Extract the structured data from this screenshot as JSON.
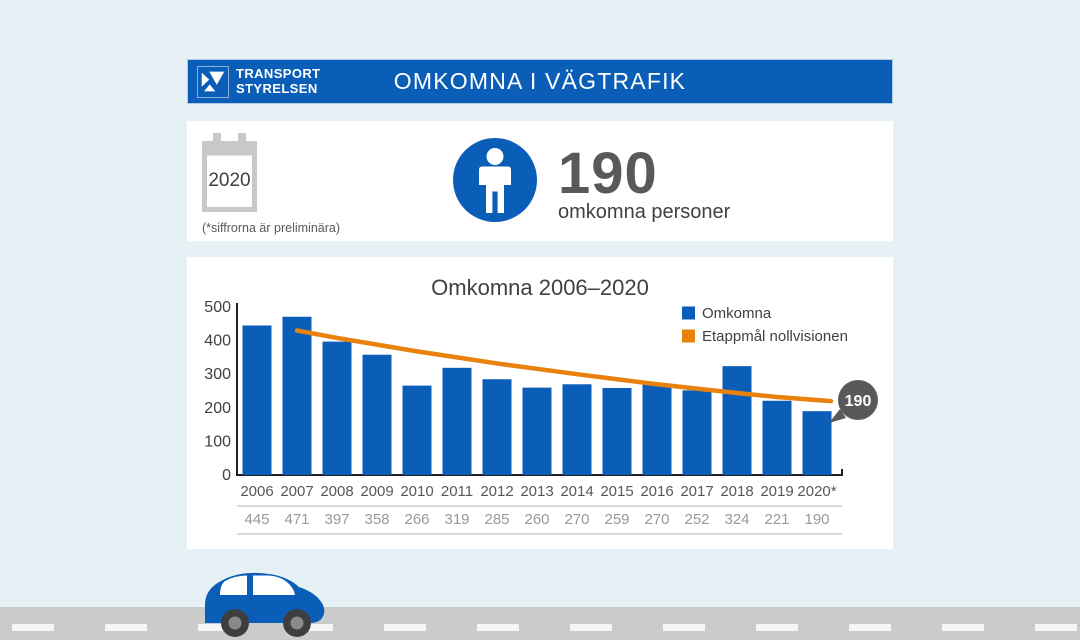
{
  "colors": {
    "brand_blue": "#0A5EB8",
    "orange": "#E8820D",
    "dark_gray": "#58595B",
    "mid_gray": "#97999B",
    "light_gray": "#C9CBCD",
    "text": "#414042",
    "background": "#E6F1F6",
    "road": "#C9CCCB",
    "card": "#FFFFFF"
  },
  "header": {
    "logo_line1": "TRANSPORT",
    "logo_line2": "STYRELSEN",
    "title": "OMKOMNA I VÄGTRAFIK"
  },
  "summary": {
    "year": "2020",
    "note": "(*siffrorna är preliminära)",
    "count": "190",
    "count_label": "omkomna personer"
  },
  "chart_data": {
    "type": "bar",
    "title": "Omkomna 2006–2020",
    "categories": [
      "2006",
      "2007",
      "2008",
      "2009",
      "2010",
      "2011",
      "2012",
      "2013",
      "2014",
      "2015",
      "2016",
      "2017",
      "2018",
      "2019",
      "2020*"
    ],
    "series": [
      {
        "name": "Omkomna",
        "type": "bar",
        "color": "#0A5EB8",
        "values": [
          445,
          471,
          397,
          358,
          266,
          319,
          285,
          260,
          270,
          259,
          270,
          252,
          324,
          221,
          190
        ]
      },
      {
        "name": "Etappmål nollvisionen",
        "type": "line",
        "color": "#E8820D",
        "start_index": 1,
        "values": [
          430,
          408,
          388,
          368,
          350,
          332,
          316,
          300,
          285,
          270,
          257,
          244,
          232,
          220
        ]
      }
    ],
    "ylim": [
      0,
      500
    ],
    "yticks": [
      0,
      100,
      200,
      300,
      400,
      500
    ],
    "legend_position": "top-right",
    "grid": false,
    "value_row_shown": true,
    "callout": {
      "text": "190"
    }
  }
}
